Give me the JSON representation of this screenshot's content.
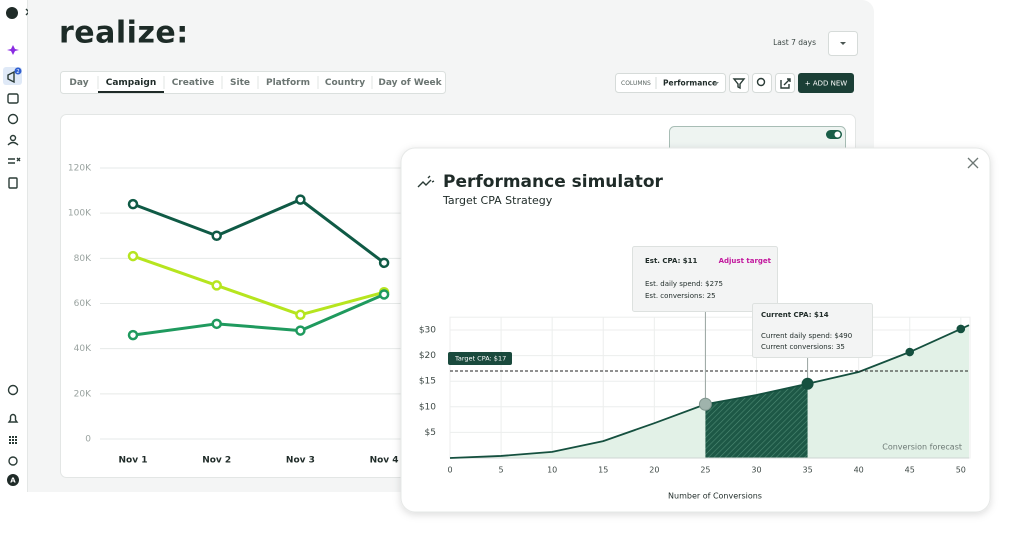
{
  "sidebar": {
    "badge": "2",
    "avatar": "A"
  },
  "header": {
    "logo": "realize:",
    "date_range": "Last 7 days"
  },
  "tabs": [
    "Day",
    "Campaign",
    "Creative",
    "Site",
    "Platform",
    "Country",
    "Day of Week"
  ],
  "active_tab": 1,
  "toolbar": {
    "columns_label": "COLUMNS",
    "columns_value": "Performance",
    "add_new": "+ ADD NEW"
  },
  "chart_data": [
    {
      "type": "line",
      "categories": [
        "Nov 1",
        "Nov 2",
        "Nov 3",
        "Nov 4"
      ],
      "series": [
        {
          "color": "#0f5a45",
          "values": [
            104000,
            90000,
            106000,
            78000
          ]
        },
        {
          "color": "#b6e51f",
          "values": [
            81000,
            68000,
            55000,
            65000
          ]
        },
        {
          "color": "#1f9a5e",
          "values": [
            46000,
            51000,
            48000,
            64000
          ]
        }
      ],
      "ylim": [
        0,
        120000
      ],
      "yticks": [
        0,
        {
          "value": 20000,
          "label": "20K"
        },
        {
          "value": 40000,
          "label": "40K"
        },
        {
          "value": 60000,
          "label": "60K"
        },
        {
          "value": 80000,
          "label": "80K"
        },
        {
          "value": 100000,
          "label": "100K"
        },
        {
          "value": 120000,
          "label": "120K"
        }
      ],
      "grid": true
    },
    {
      "type": "area",
      "title": "Performance simulator",
      "subtitle": "Target CPA Strategy",
      "xlabel": "Number of Conversions",
      "forecast_label": "Conversion forecast",
      "x": [
        0,
        5,
        10,
        15,
        20,
        25,
        30,
        35,
        40,
        45,
        50,
        50.8
      ],
      "values": [
        0,
        0.4,
        1.2,
        3.3,
        6.8,
        10.5,
        12.3,
        14.5,
        16.8,
        21.4,
        30.4,
        31.9
      ],
      "color": "#15503f",
      "fill": "#e2f1e7",
      "markers": [
        5,
        7,
        9,
        10
      ],
      "xlim": [
        0,
        50.8
      ],
      "xticks": [
        0,
        5,
        10,
        15,
        20,
        25,
        30,
        35,
        40,
        45,
        50
      ],
      "ylim": [
        0,
        35
      ],
      "yticks": [
        {
          "value": 5,
          "label": "$5"
        },
        {
          "value": 10,
          "label": "$10"
        },
        {
          "value": 15,
          "label": "$15"
        },
        {
          "value": 20,
          "label": "$20"
        },
        {
          "value": 30,
          "label": "$30"
        }
      ],
      "grid": true,
      "highlight_range": [
        25,
        35
      ],
      "target": {
        "value": 17,
        "label": "Target CPA: $17"
      },
      "tooltips": [
        {
          "x": 25,
          "title": "Est. CPA: $11",
          "action": "Adjust target",
          "lines": [
            "Est. daily spend: $275",
            "Est. conversions: 25"
          ]
        },
        {
          "x": 35,
          "title": "Current CPA: $14",
          "lines": [
            "Current daily spend: $490",
            "Current conversions: 35"
          ]
        }
      ]
    }
  ]
}
